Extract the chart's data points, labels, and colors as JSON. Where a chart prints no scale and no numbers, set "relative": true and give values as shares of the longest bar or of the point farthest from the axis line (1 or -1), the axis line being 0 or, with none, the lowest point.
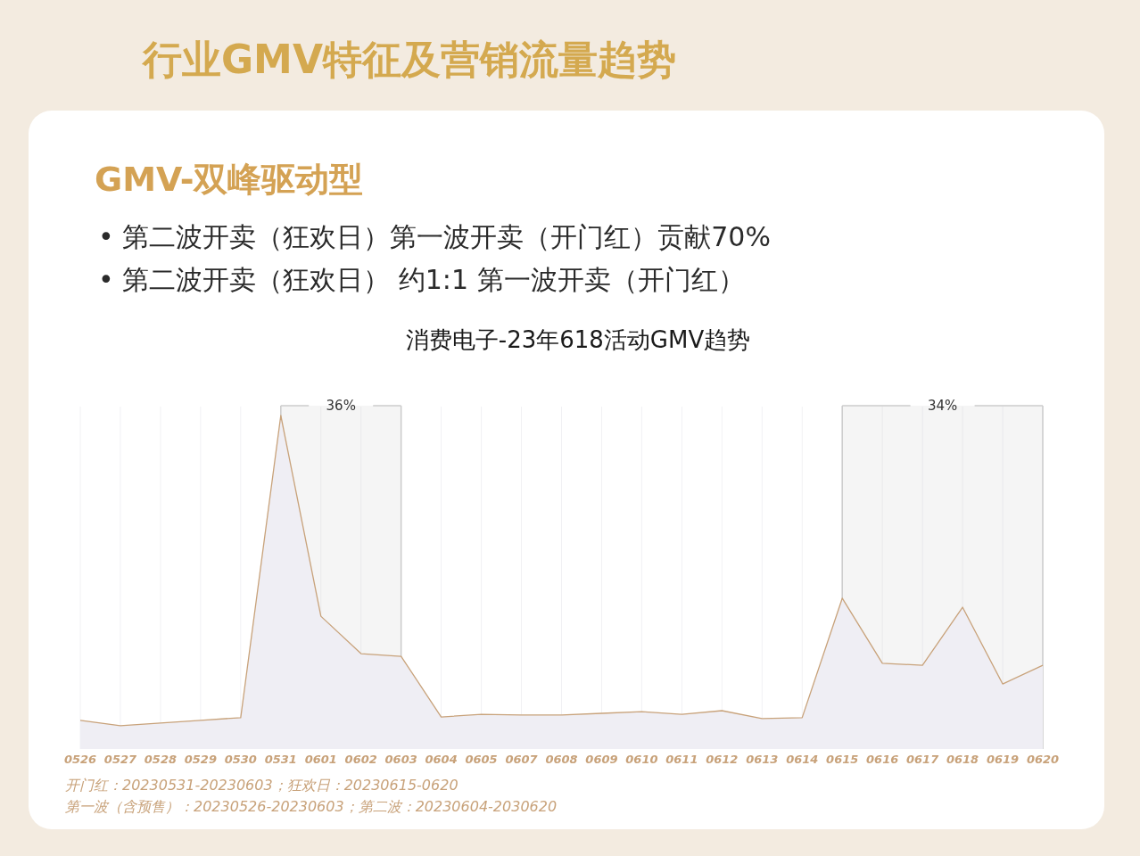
{
  "chart_data": {
    "type": "area",
    "grid": "x",
    "title": "消费电子-23年618活动GMV趋势",
    "relative": true,
    "categories": [
      "0526",
      "0527",
      "0528",
      "0529",
      "0530",
      "0531",
      "0601",
      "0602",
      "0603",
      "0604",
      "0605",
      "0607",
      "0608",
      "0609",
      "0610",
      "0611",
      "0612",
      "0613",
      "0614",
      "0615",
      "0616",
      "0617",
      "0618",
      "0619",
      "0620"
    ],
    "series": [
      {
        "color": "#c8a27a",
        "values": [
          0.086,
          0.07,
          0.078,
          0.086,
          0.094,
          1,
          0.398,
          0.286,
          0.278,
          0.096,
          0.104,
          0.102,
          0.102,
          0.107,
          0.112,
          0.104,
          0.115,
          0.091,
          0.094,
          0.452,
          0.257,
          0.251,
          0.425,
          0.195,
          0.251
        ]
      }
    ],
    "bands": [
      {
        "axis": "x",
        "from": "0531",
        "to": "0603",
        "label": "36%",
        "color": "#cccccc"
      },
      {
        "axis": "x",
        "from": "0615",
        "to": "0620",
        "label": "34%",
        "color": "#cccccc"
      }
    ],
    "annotations": [
      "行业GMV特征及营销流量趋势",
      "GMV-双峰驱动型",
      "• 第二波开卖（狂欢日）第一波开卖（开门红）贡献70%",
      "• 第二波开卖（狂欢日） 约1:1 第一波开卖（开门红）",
      "开门红：20230531-20230603；狂欢日：20230615-0620",
      "第一波（含预售）：20230526-20230603；第二波：20230604-2030620"
    ]
  }
}
